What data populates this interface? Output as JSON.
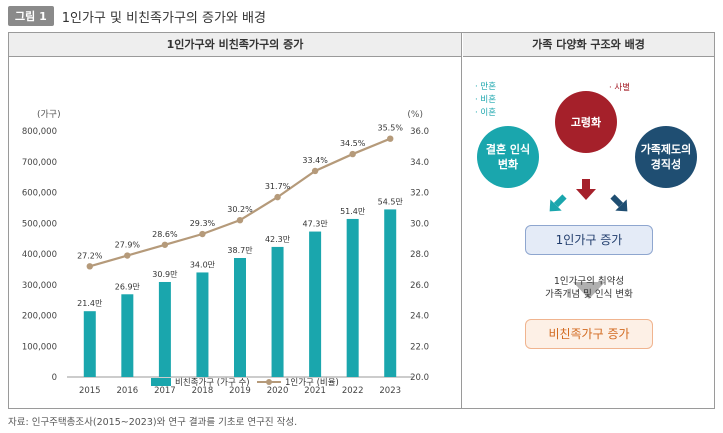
{
  "header": {
    "badge": "그림 1",
    "title": "1인가구 및 비친족가구의 증가와 배경"
  },
  "left_panel": {
    "title": "1인가구와 비친족가구의 증가"
  },
  "right_panel": {
    "title": "가족 다양화 구조와 배경"
  },
  "chart_data": {
    "type": "bar",
    "categories": [
      "2015",
      "2016",
      "2017",
      "2018",
      "2019",
      "2020",
      "2021",
      "2022",
      "2023"
    ],
    "series": [
      {
        "name": "비친족가구 (가구 수)",
        "chart": "bar",
        "axis": "left",
        "color": "#1aa6ad",
        "values": [
          214000,
          269000,
          309000,
          340000,
          387000,
          423000,
          473000,
          514000,
          545000
        ],
        "labels": [
          "21.4만",
          "26.9만",
          "30.9만",
          "34.0만",
          "38.7만",
          "42.3만",
          "47.3만",
          "51.4만",
          "54.5만"
        ]
      },
      {
        "name": "1인가구 (비율)",
        "chart": "line",
        "axis": "right",
        "color": "#b59a7a",
        "values": [
          27.2,
          27.9,
          28.6,
          29.3,
          30.2,
          31.7,
          33.4,
          34.5,
          35.5
        ],
        "labels": [
          "27.2%",
          "27.9%",
          "28.6%",
          "29.3%",
          "30.2%",
          "31.7%",
          "33.4%",
          "34.5%",
          "35.5%"
        ]
      }
    ],
    "y_left": {
      "label": "(가구)",
      "ylim": [
        0,
        800000
      ],
      "ticks": [
        "0",
        "100,000",
        "200,000",
        "300,000",
        "400,000",
        "500,000",
        "600,000",
        "700,000",
        "800,000"
      ]
    },
    "y_right": {
      "label": "(%)",
      "ylim": [
        20,
        36
      ],
      "ticks": [
        "20.0",
        "22.0",
        "24.0",
        "26.0",
        "28.0",
        "30.0",
        "32.0",
        "34.0",
        "36.0"
      ]
    },
    "legend_position": "bottom",
    "grid": false
  },
  "diagram": {
    "side_notes": [
      "· 만혼",
      "· 비혼",
      "· 이혼"
    ],
    "top_note": "· 사별",
    "circle_left": [
      "결혼 인식",
      "변화"
    ],
    "circle_mid": "고령화",
    "circle_right": [
      "가족제도의",
      "경직성"
    ],
    "box_single": "1인가구 증가",
    "mid_text": [
      "1인가구의 취약성",
      "가족개념 및 인식 변화"
    ],
    "box_nonkin": "비친족가구 증가",
    "colors": {
      "teal": "#1aa6ad",
      "red": "#a5202a",
      "navy": "#1f4e72"
    }
  },
  "footer": {
    "source": "자료: 인구주택총조사(2015~2023)와 연구 결과를 기초로 연구진 작성."
  }
}
